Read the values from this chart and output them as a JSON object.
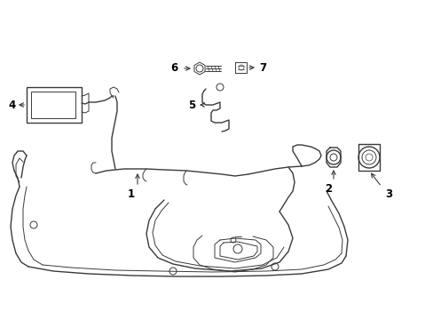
{
  "bg_color": "#ffffff",
  "line_color": "#3a3a3a",
  "label_color": "#000000",
  "label_fontsize": 8.5,
  "figsize": [
    4.89,
    3.6
  ],
  "dpi": 100
}
